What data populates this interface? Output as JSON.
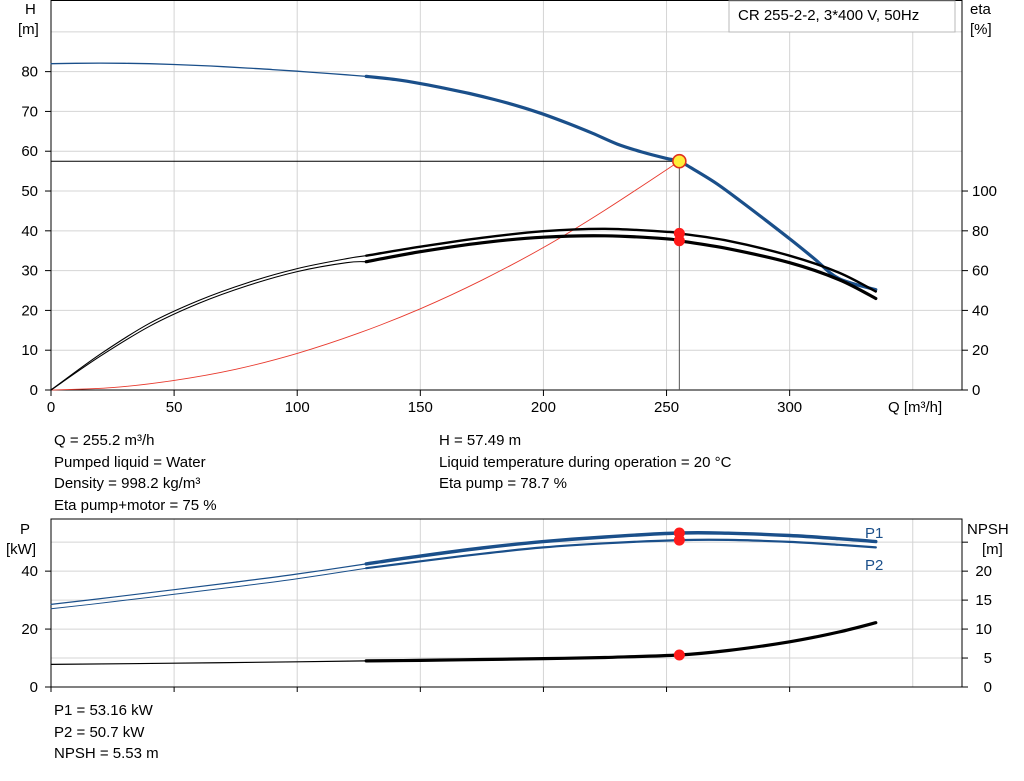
{
  "chart_data": [
    {
      "type": "line",
      "title": "CR 255-2-2, 3*400 V, 50Hz",
      "xlabel": "Q [m³/h]",
      "ylabel_left": [
        "H",
        "[m]"
      ],
      "ylabel_right": [
        "eta",
        "[%]"
      ],
      "xlim": [
        0,
        370
      ],
      "ylim_left": [
        0,
        98
      ],
      "ylim_right": [
        0,
        196
      ],
      "x_ticks": [
        "0",
        "50",
        "100",
        "150",
        "200",
        "250",
        "300"
      ],
      "y_left_ticks": [
        "0",
        "10",
        "20",
        "30",
        "40",
        "50",
        "60",
        "70",
        "80"
      ],
      "y_right_ticks": [
        "0",
        "20",
        "40",
        "60",
        "80",
        "100"
      ],
      "grid": true,
      "series": [
        {
          "axis": "left",
          "color": "#1a4f8a",
          "x": [
            0,
            10,
            20,
            30,
            40,
            50,
            60,
            70,
            80,
            90,
            100,
            110,
            120,
            128,
            140,
            150,
            160,
            170,
            180,
            190,
            200,
            210,
            220,
            230,
            240,
            250,
            255.2,
            260,
            270,
            280,
            290,
            300,
            310,
            320,
            335
          ],
          "y": [
            82,
            82.1,
            82.15,
            82.1,
            82,
            81.8,
            81.55,
            81.25,
            80.9,
            80.5,
            80.1,
            79.65,
            79.2,
            78.8,
            78.0,
            77.0,
            75.8,
            74.5,
            73.0,
            71.3,
            69.3,
            67.0,
            64.5,
            61.8,
            59.8,
            58.2,
            57.49,
            55.8,
            52.0,
            47.5,
            42.8,
            38.0,
            33.0,
            28.0,
            25.2
          ]
        },
        {
          "axis": "right",
          "color": "#000000",
          "x": [
            0,
            20,
            40,
            60,
            80,
            100,
            120,
            128,
            150,
            175,
            200,
            225,
            250,
            255.2,
            275,
            300,
            320,
            335
          ],
          "y": [
            0,
            18,
            33.5,
            45,
            54,
            61,
            66,
            67.5,
            72,
            76.5,
            79.8,
            81,
            79.5,
            78.7,
            75,
            67.5,
            59,
            49.5
          ]
        },
        {
          "axis": "right",
          "color": "#000000",
          "x": [
            0,
            20,
            40,
            60,
            80,
            100,
            120,
            128,
            150,
            175,
            200,
            225,
            250,
            255.2,
            275,
            300,
            320,
            335
          ],
          "y": [
            0,
            17,
            32,
            43.5,
            52.5,
            59.5,
            64,
            64.5,
            69.5,
            74,
            76.8,
            77.5,
            76,
            75,
            71,
            64,
            55.5,
            46
          ]
        },
        {
          "axis": "left",
          "color": "#e83a2e",
          "x": [
            0,
            25,
            50,
            75,
            100,
            125,
            150,
            175,
            200,
            225,
            255.2
          ],
          "y": [
            0,
            0.6,
            2.4,
            5.2,
            9.2,
            14.3,
            20.4,
            27.6,
            35.8,
            45.2,
            57.49
          ]
        }
      ],
      "operating_point": {
        "x": 255.2,
        "y": 57.49
      }
    },
    {
      "type": "line",
      "xlim": [
        0,
        370
      ],
      "ylabel_left": [
        "P",
        "[kW]"
      ],
      "ylabel_right": [
        "NPSH",
        "[m]"
      ],
      "ylim_left": [
        0,
        58
      ],
      "ylim_right": [
        0,
        29
      ],
      "y_left_ticks": [
        "0",
        "20",
        "40"
      ],
      "y_right_ticks": [
        "0",
        "5",
        "10",
        "15",
        "20"
      ],
      "grid": true,
      "series": [
        {
          "name": "P1",
          "axis": "left",
          "color": "#1a4f8a",
          "x": [
            0,
            25,
            50,
            75,
            100,
            128,
            150,
            175,
            200,
            225,
            255.2,
            275,
            300,
            320,
            335
          ],
          "y": [
            28.5,
            31,
            33.6,
            36.2,
            39,
            42.5,
            45.2,
            48,
            50.2,
            51.8,
            53.16,
            53.1,
            52.3,
            51.2,
            50.2
          ]
        },
        {
          "name": "P2",
          "axis": "left",
          "color": "#1a4f8a",
          "x": [
            0,
            25,
            50,
            75,
            100,
            128,
            150,
            175,
            200,
            225,
            255.2,
            275,
            300,
            320,
            335
          ],
          "y": [
            27,
            29.4,
            32,
            34.6,
            37.4,
            41,
            43.4,
            46,
            48.2,
            49.6,
            50.7,
            50.8,
            50.1,
            49.1,
            48.2
          ]
        },
        {
          "name": "NPSH",
          "axis": "right",
          "color": "#000000",
          "x": [
            0,
            50,
            100,
            128,
            150,
            175,
            200,
            225,
            255.2,
            275,
            300,
            320,
            335
          ],
          "y": [
            3.9,
            4.1,
            4.35,
            4.5,
            4.6,
            4.75,
            4.9,
            5.1,
            5.53,
            6.3,
            7.8,
            9.5,
            11.1
          ]
        }
      ],
      "markers_x": 255.2,
      "line_labels": [
        "P1",
        "P2"
      ]
    }
  ],
  "info_top_left": [
    "Q = 255.2 m³/h",
    "Pumped liquid = Water",
    "Density = 998.2 kg/m³",
    "Eta pump+motor = 75 %"
  ],
  "info_top_right": [
    "H = 57.49 m",
    "Liquid temperature during operation = 20 °C",
    "Eta pump = 78.7 %"
  ],
  "info_bottom": [
    "P1 = 53.16 kW",
    "P2 = 50.7 kW",
    "NPSH = 5.53 m"
  ]
}
